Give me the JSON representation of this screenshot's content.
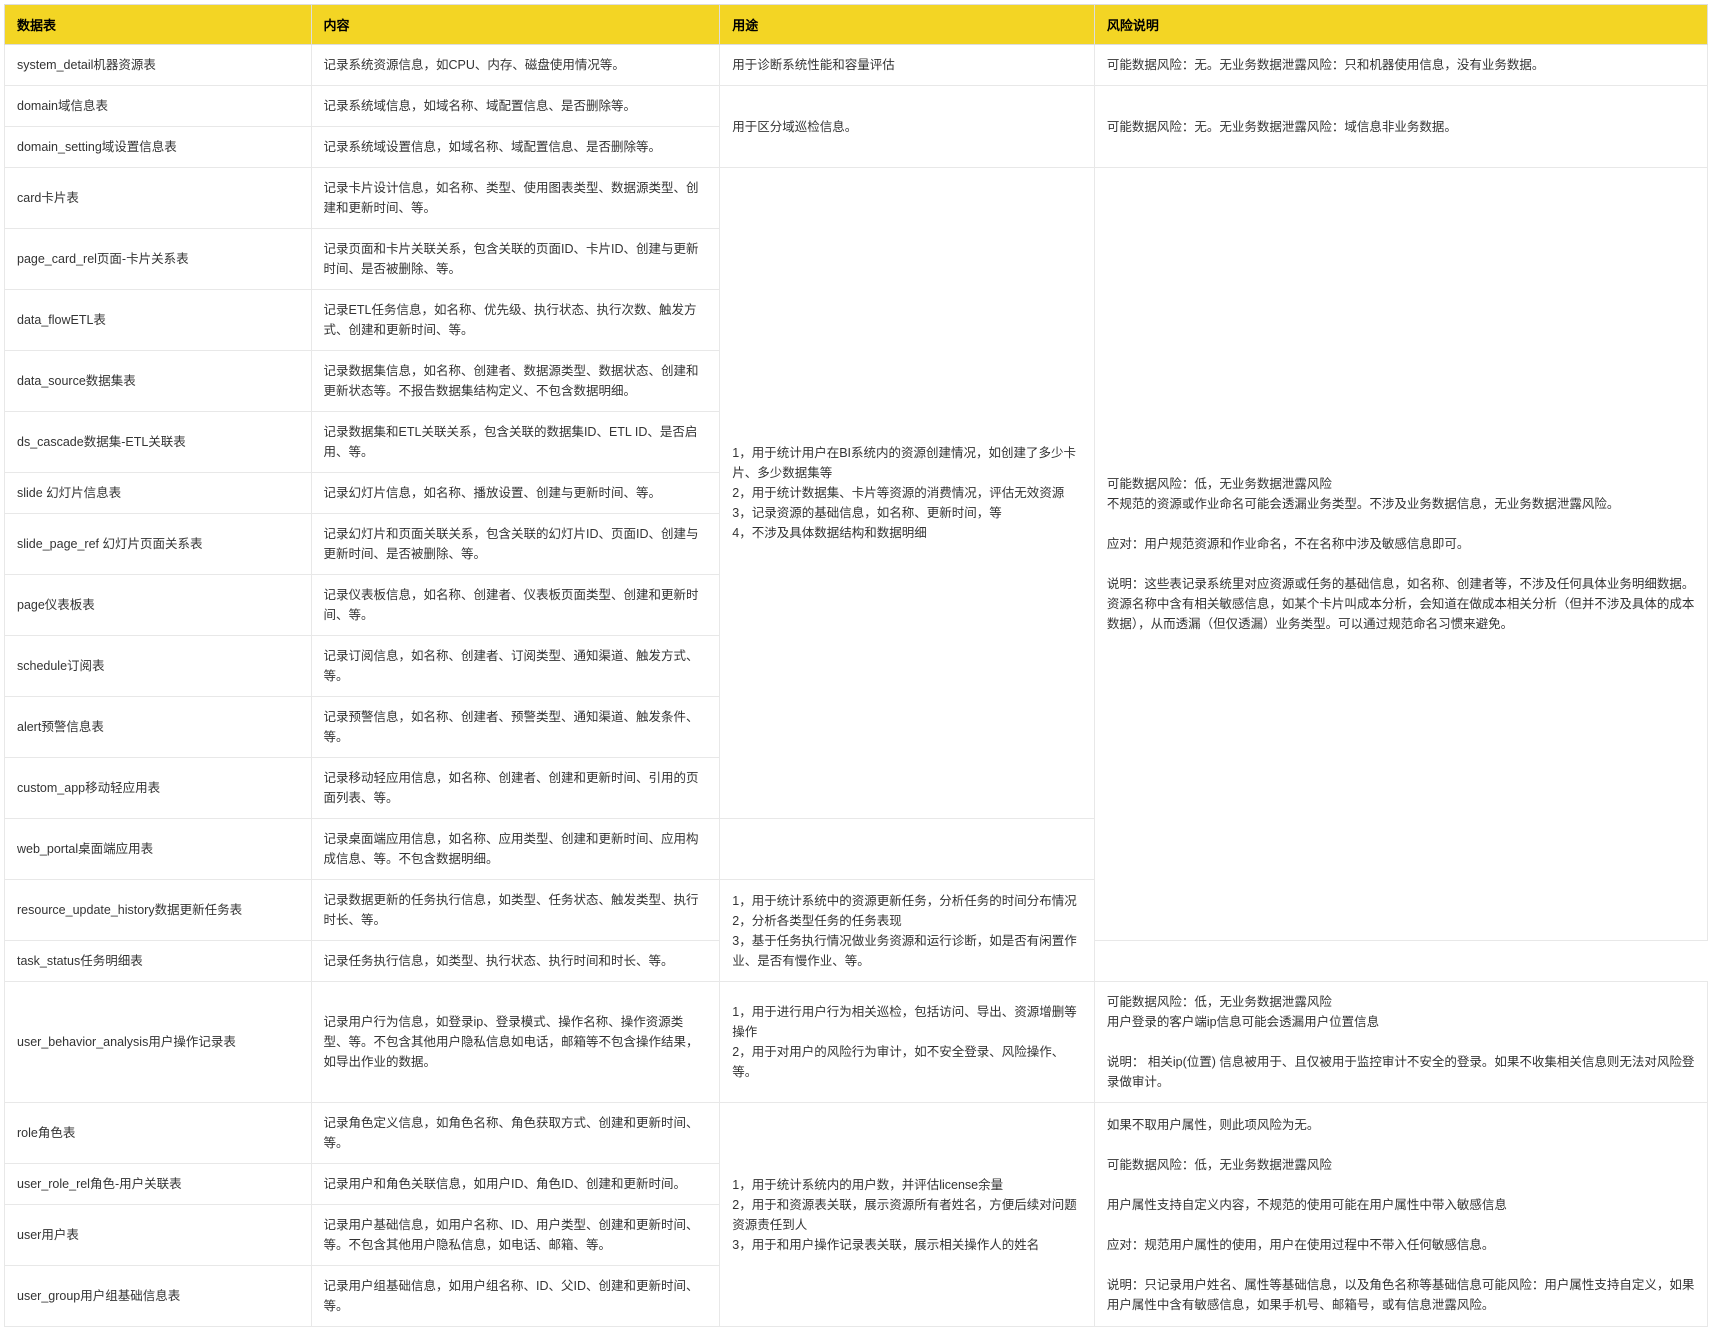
{
  "table": {
    "headers": [
      "数据表",
      "内容",
      "用途",
      "风险说明"
    ],
    "column_widths": [
      "18%",
      "24%",
      "22%",
      "36%"
    ],
    "header_bg": "#f3d524",
    "header_color": "#000000",
    "border_color": "#e8e8e8",
    "rows": [
      {
        "cells": [
          {
            "text": "system_detail机器资源表"
          },
          {
            "text": "记录系统资源信息，如CPU、内存、磁盘使用情况等。"
          },
          {
            "text": "用于诊断系统性能和容量评估"
          },
          {
            "text": "可能数据风险：无。无业务数据泄露风险：只和机器使用信息，没有业务数据。"
          }
        ]
      },
      {
        "cells": [
          {
            "text": "domain域信息表"
          },
          {
            "text": "记录系统域信息，如域名称、域配置信息、是否删除等。"
          },
          {
            "text": "用于区分域巡检信息。",
            "rowspan": 2
          },
          {
            "text": "可能数据风险：无。无业务数据泄露风险：域信息非业务数据。",
            "rowspan": 2
          }
        ]
      },
      {
        "cells": [
          {
            "text": "domain_setting域设置信息表"
          },
          {
            "text": "记录系统域设置信息，如域名称、域配置信息、是否删除等。"
          }
        ]
      },
      {
        "cells": [
          {
            "text": "card卡片表"
          },
          {
            "text": "记录卡片设计信息，如名称、类型、使用图表类型、数据源类型、创建和更新时间、等。"
          },
          {
            "text": "1，用于统计用户在BI系统内的资源创建情况，如创建了多少卡片、多少数据集等\n2，用于统计数据集、卡片等资源的消费情况，评估无效资源\n3，记录资源的基础信息，如名称、更新时间，等\n4，不涉及具体数据结构和数据明细",
            "rowspan": 11
          },
          {
            "text": "可能数据风险：低，无业务数据泄露风险\n不规范的资源或作业命名可能会透漏业务类型。不涉及业务数据信息，无业务数据泄露风险。\n\n应对：用户规范资源和作业命名，不在名称中涉及敏感信息即可。\n\n说明：这些表记录系统里对应资源或任务的基础信息，如名称、创建者等，不涉及任何具体业务明细数据。资源名称中含有相关敏感信息，如某个卡片叫成本分析，会知道在做成本相关分析（但并不涉及具体的成本数据），从而透漏（但仅透漏）业务类型。可以通过规范命名习惯来避免。",
            "rowspan": 13
          }
        ]
      },
      {
        "cells": [
          {
            "text": "page_card_rel页面-卡片关系表"
          },
          {
            "text": "记录页面和卡片关联关系，包含关联的页面ID、卡片ID、创建与更新时间、是否被删除、等。"
          }
        ]
      },
      {
        "cells": [
          {
            "text": "data_flowETL表"
          },
          {
            "text": "记录ETL任务信息，如名称、优先级、执行状态、执行次数、触发方式、创建和更新时间、等。"
          }
        ]
      },
      {
        "cells": [
          {
            "text": "data_source数据集表"
          },
          {
            "text": "记录数据集信息，如名称、创建者、数据源类型、数据状态、创建和更新状态等。不报告数据集结构定义、不包含数据明细。"
          }
        ]
      },
      {
        "cells": [
          {
            "text": "ds_cascade数据集-ETL关联表"
          },
          {
            "text": "记录数据集和ETL关联关系，包含关联的数据集ID、ETL ID、是否启用、等。"
          }
        ]
      },
      {
        "cells": [
          {
            "text": "slide 幻灯片信息表"
          },
          {
            "text": "记录幻灯片信息，如名称、播放设置、创建与更新时间、等。"
          }
        ]
      },
      {
        "cells": [
          {
            "text": "slide_page_ref 幻灯片页面关系表"
          },
          {
            "text": "记录幻灯片和页面关联关系，包含关联的幻灯片ID、页面ID、创建与更新时间、是否被删除、等。"
          }
        ]
      },
      {
        "cells": [
          {
            "text": "page仪表板表"
          },
          {
            "text": "记录仪表板信息，如名称、创建者、仪表板页面类型、创建和更新时间、等。"
          }
        ]
      },
      {
        "cells": [
          {
            "text": "schedule订阅表"
          },
          {
            "text": "记录订阅信息，如名称、创建者、订阅类型、通知渠道、触发方式、等。"
          }
        ]
      },
      {
        "cells": [
          {
            "text": "alert预警信息表"
          },
          {
            "text": "记录预警信息，如名称、创建者、预警类型、通知渠道、触发条件、等。"
          }
        ]
      },
      {
        "cells": [
          {
            "text": "custom_app移动轻应用表"
          },
          {
            "text": "记录移动轻应用信息，如名称、创建者、创建和更新时间、引用的页面列表、等。"
          }
        ]
      },
      {
        "cells": [
          {
            "text": "web_portal桌面端应用表"
          },
          {
            "text": "记录桌面端应用信息，如名称、应用类型、创建和更新时间、应用构成信息、等。不包含数据明细。"
          },
          {
            "text": "",
            "hidden": true
          }
        ]
      },
      {
        "cells": [
          {
            "text": "resource_update_history数据更新任务表"
          },
          {
            "text": "记录数据更新的任务执行信息，如类型、任务状态、触发类型、执行时长、等。"
          },
          {
            "text": "1，用于统计系统中的资源更新任务，分析任务的时间分布情况\n2，分析各类型任务的任务表现\n3，基于任务执行情况做业务资源和运行诊断，如是否有闲置作业、是否有慢作业、等。",
            "rowspan": 2
          }
        ]
      },
      {
        "cells": [
          {
            "text": "task_status任务明细表"
          },
          {
            "text": "记录任务执行信息，如类型、执行状态、执行时间和时长、等。"
          }
        ]
      },
      {
        "cells": [
          {
            "text": "user_behavior_analysis用户操作记录表"
          },
          {
            "text": "记录用户行为信息，如登录ip、登录模式、操作名称、操作资源类型、等。不包含其他用户隐私信息如电话，邮箱等不包含操作结果，如导出作业的数据。"
          },
          {
            "text": "1，用于进行用户行为相关巡检，包括访问、导出、资源增删等操作\n2，用于对用户的风险行为审计，如不安全登录、风险操作、等。"
          },
          {
            "text": "可能数据风险：低，无业务数据泄露风险\n用户登录的客户端ip信息可能会透漏用户位置信息\n\n说明：    相关ip(位置) 信息被用于、且仅被用于监控审计不安全的登录。如果不收集相关信息则无法对风险登录做审计。"
          }
        ]
      },
      {
        "cells": [
          {
            "text": "role角色表"
          },
          {
            "text": "记录角色定义信息，如角色名称、角色获取方式、创建和更新时间、等。"
          },
          {
            "text": "1，用于统计系统内的用户数，并评估license余量\n2，用于和资源表关联，展示资源所有者姓名，方便后续对问题资源责任到人\n3，用于和用户操作记录表关联，展示相关操作人的姓名",
            "rowspan": 4
          },
          {
            "text": "如果不取用户属性，则此项风险为无。\n\n可能数据风险：低，无业务数据泄露风险\n\n用户属性支持自定义内容，不规范的使用可能在用户属性中带入敏感信息\n\n应对：规范用户属性的使用，用户在使用过程中不带入任何敏感信息。\n\n说明：只记录用户姓名、属性等基础信息，以及角色名称等基础信息可能风险：用户属性支持自定义，如果用户属性中含有敏感信息，如果手机号、邮箱号，或有信息泄露风险。",
            "rowspan": 4
          }
        ]
      },
      {
        "cells": [
          {
            "text": "user_role_rel角色-用户关联表"
          },
          {
            "text": "记录用户和角色关联信息，如用户ID、角色ID、创建和更新时间。"
          }
        ]
      },
      {
        "cells": [
          {
            "text": "user用户表"
          },
          {
            "text": "记录用户基础信息，如用户名称、ID、用户类型、创建和更新时间、等。不包含其他用户隐私信息，如电话、邮箱、等。"
          }
        ]
      },
      {
        "cells": [
          {
            "text": "user_group用户组基础信息表"
          },
          {
            "text": "记录用户组基础信息，如用户组名称、ID、父ID、创建和更新时间、等。"
          }
        ]
      }
    ]
  }
}
